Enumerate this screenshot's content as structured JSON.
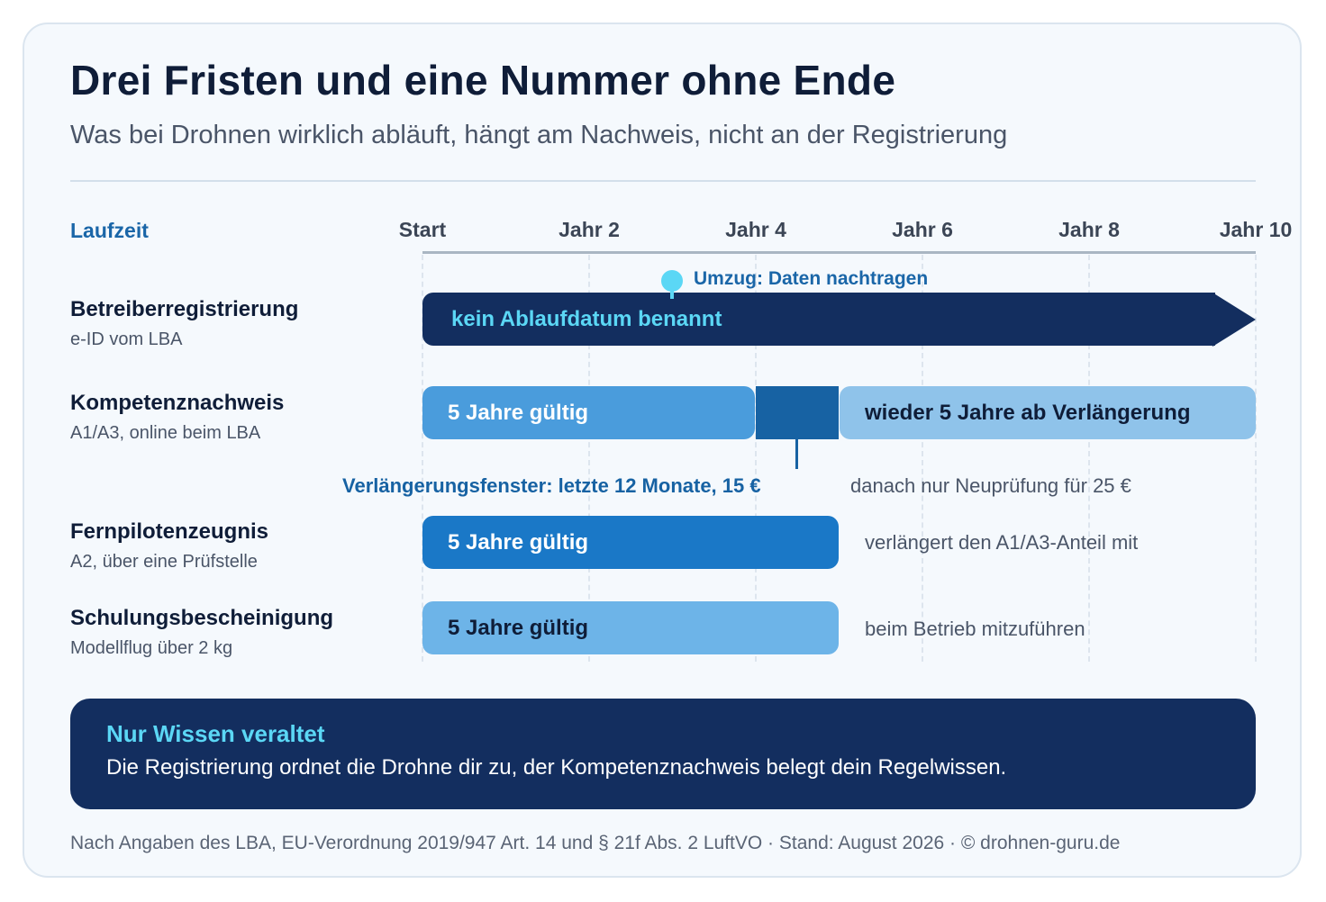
{
  "title": "Drei Fristen und eine Nummer ohne Ende",
  "subtitle": "Was bei Drohnen wirklich abläuft, hängt am Nachweis, nicht an der Registrierung",
  "axis": {
    "label": "Laufzeit",
    "ticks": [
      "Start",
      "Jahr 2",
      "Jahr 4",
      "Jahr 6",
      "Jahr 8",
      "Jahr 10"
    ]
  },
  "rows": [
    {
      "title": "Betreiberregistrierung",
      "subtitle": "e-ID vom LBA",
      "bar_label": "kein Ablaufdatum benannt",
      "marker_label": "Umzug: Daten nachtragen"
    },
    {
      "title": "Kompetenznachweis",
      "subtitle": "A1/A3, online beim LBA",
      "bar1_label": "5 Jahre gültig",
      "bar2_label": "wieder 5 Jahre ab Verlängerung",
      "window_note": "Verlängerungsfenster: letzte 12 Monate, 15 €",
      "after_note": "danach nur Neuprüfung für 25 €"
    },
    {
      "title": "Fernpilotenzeugnis",
      "subtitle": "A2, über eine Prüfstelle",
      "bar_label": "5 Jahre gültig",
      "side_note": "verlängert den A1/A3-Anteil mit"
    },
    {
      "title": "Schulungsbescheinigung",
      "subtitle": "Modellflug über 2 kg",
      "bar_label": "5 Jahre gültig",
      "side_note": "beim Betrieb mitzuführen"
    }
  ],
  "callout": {
    "title": "Nur Wissen veraltet",
    "text": "Die Registrierung ordnet die Drohne dir zu, der Kompetenznachweis belegt dein Regelwissen."
  },
  "source": "Nach Angaben des LBA, EU-Verordnung 2019/947 Art. 14 und § 21f Abs. 2 LuftVO · Stand: August 2026 · © drohnen-guru.de",
  "colors": {
    "navy": "#132e5f",
    "cyan": "#5bd7f5",
    "blue_dark": "#1762a3",
    "blue_mid": "#1a78c7",
    "blue_light": "#4a9cdc",
    "blue_pale": "#8fc3ea",
    "blue_soft": "#6db4e8"
  }
}
